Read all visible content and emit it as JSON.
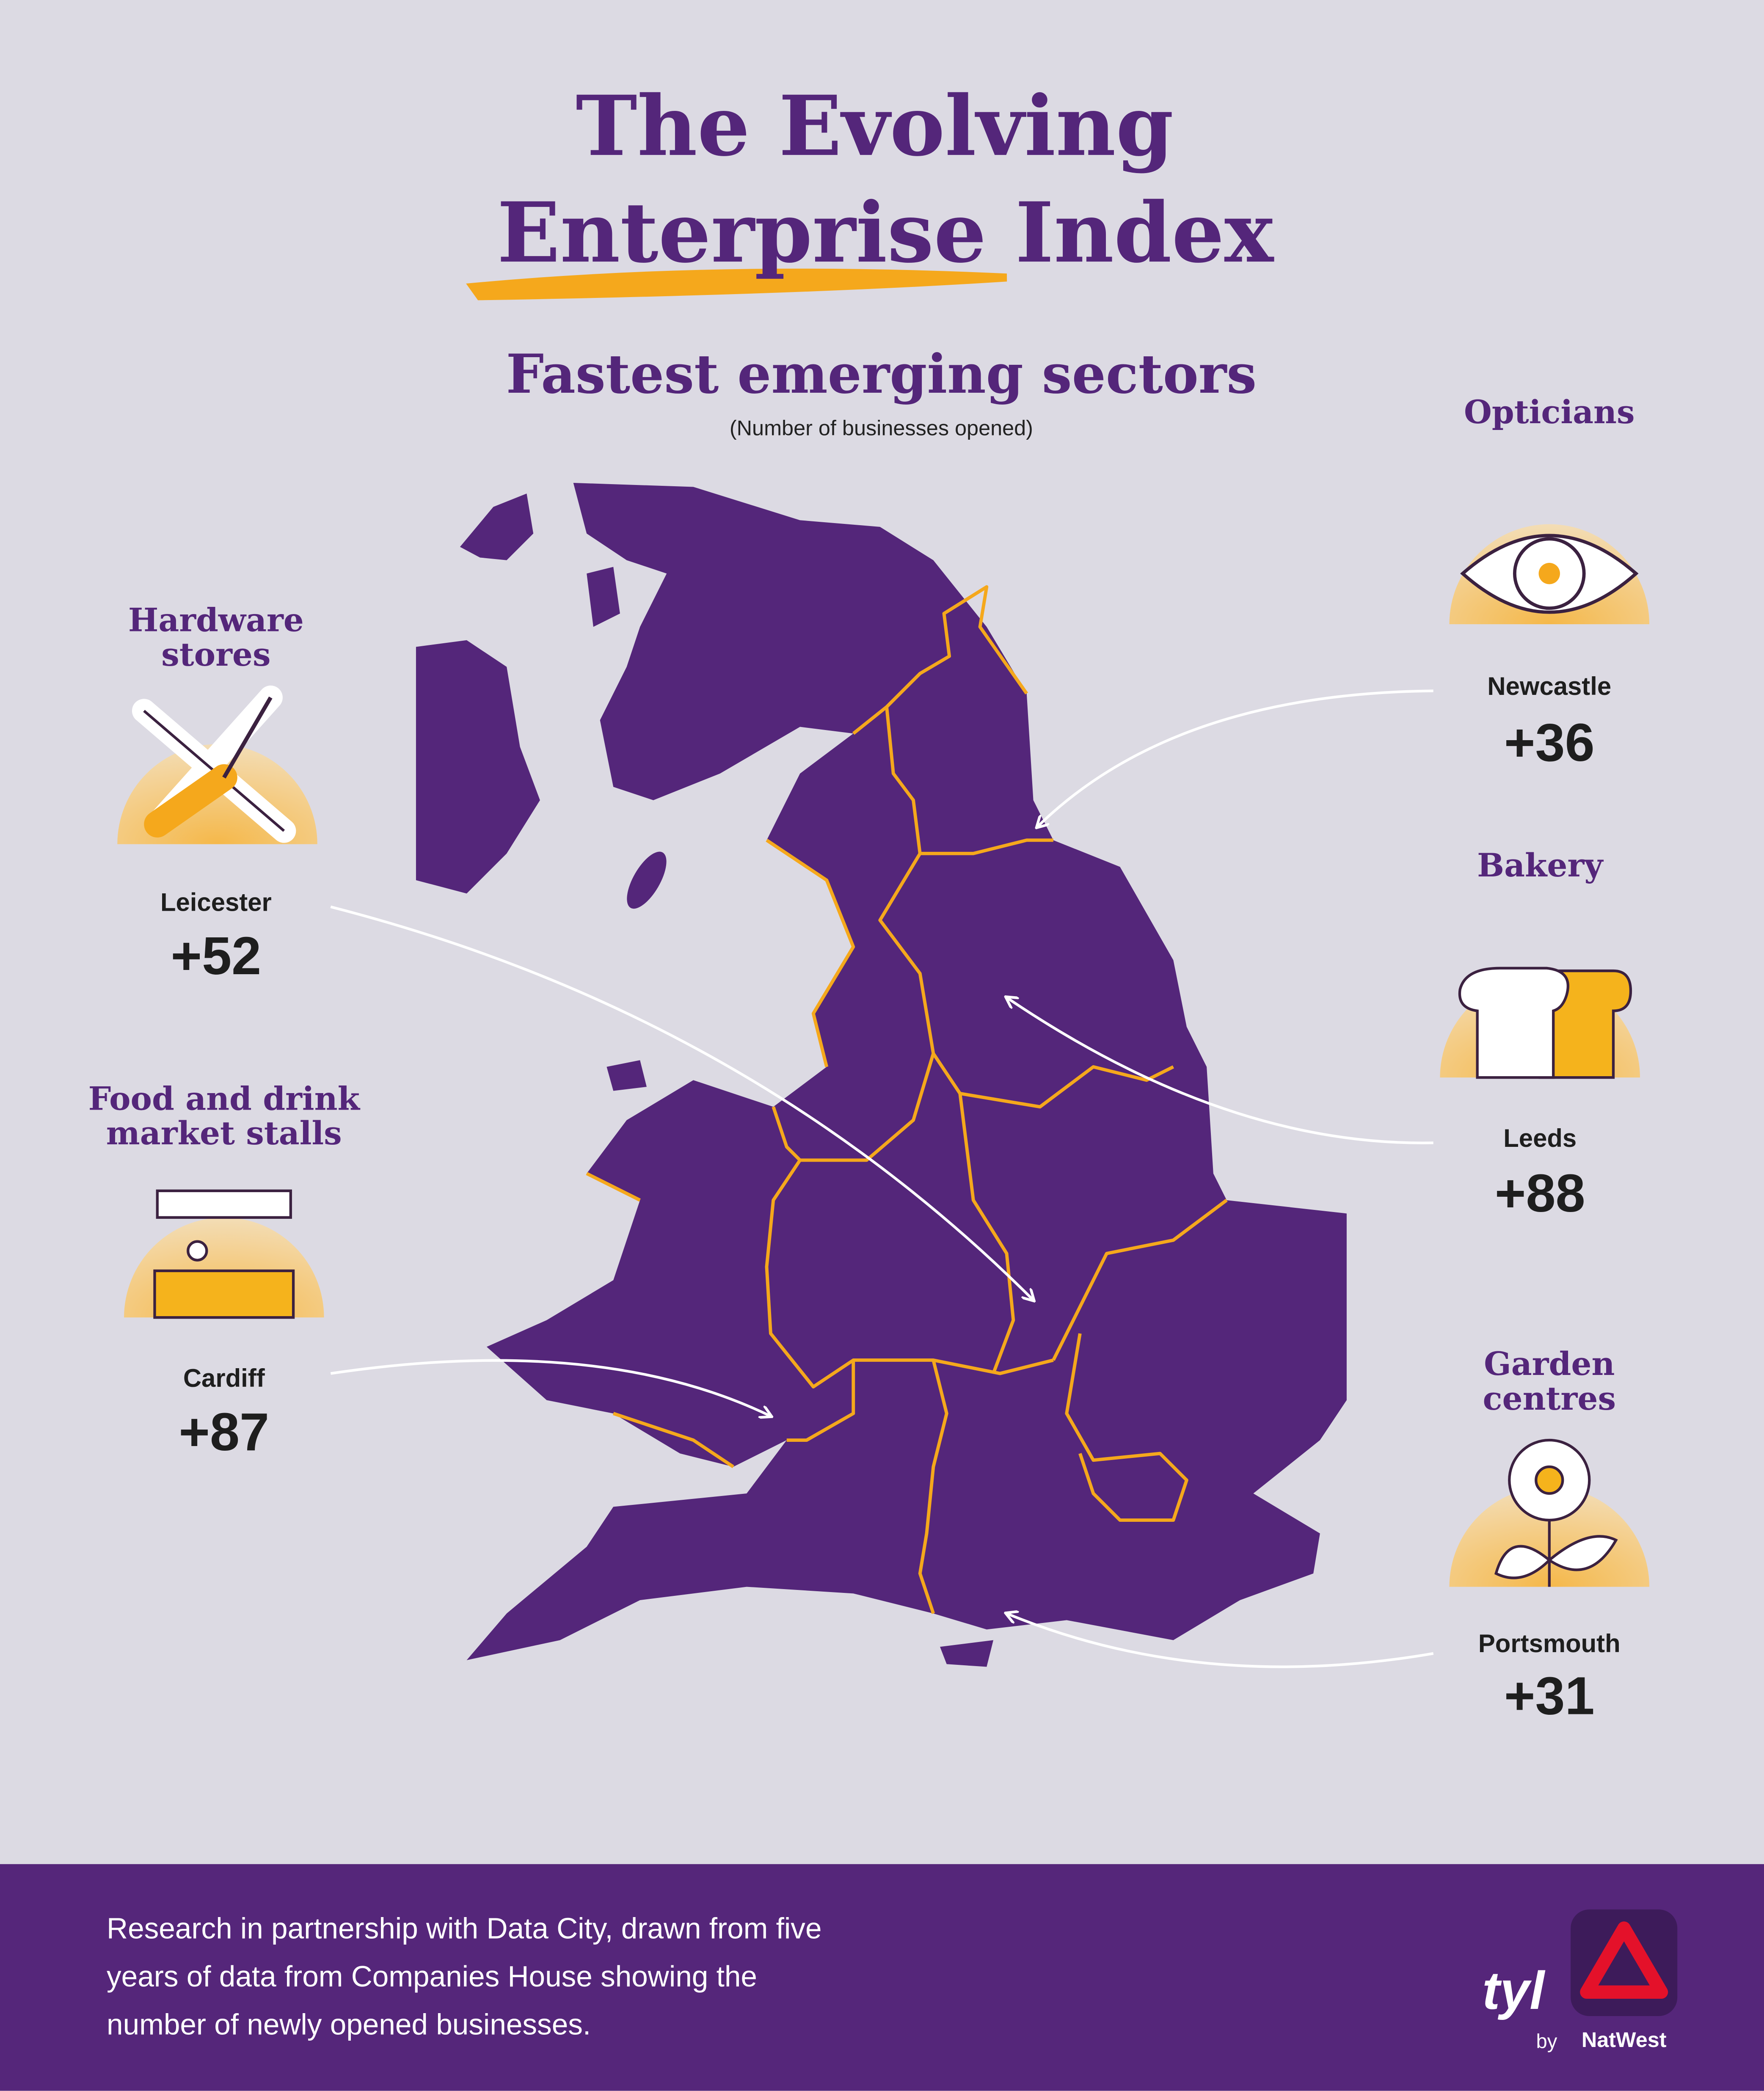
{
  "title_lines": [
    "The Evolving",
    "Enterprise Index"
  ],
  "subtitle": "Fastest emerging sectors",
  "note": "(Number of businesses opened)",
  "sectors": [
    {
      "name_lines": [
        "Hardware",
        "stores"
      ],
      "city": "Leicester",
      "value": "+52"
    },
    {
      "name_lines": [
        "Food and drink",
        "market stalls"
      ],
      "city": "Cardiff",
      "value": "+87"
    },
    {
      "name_lines": [
        "Opticians"
      ],
      "city": "Newcastle",
      "value": "+36"
    },
    {
      "name_lines": [
        "Bakery"
      ],
      "city": "Leeds",
      "value": "+88"
    },
    {
      "name_lines": [
        "Garden",
        "centres"
      ],
      "city": "Portsmouth",
      "value": "+31"
    }
  ],
  "footer": {
    "lines": [
      "Research in partnership with Data City, drawn from five",
      "years of data from Companies House showing the",
      "number of newly opened businesses."
    ],
    "logo": "tyl",
    "by": "by",
    "brand": "NatWest"
  }
}
